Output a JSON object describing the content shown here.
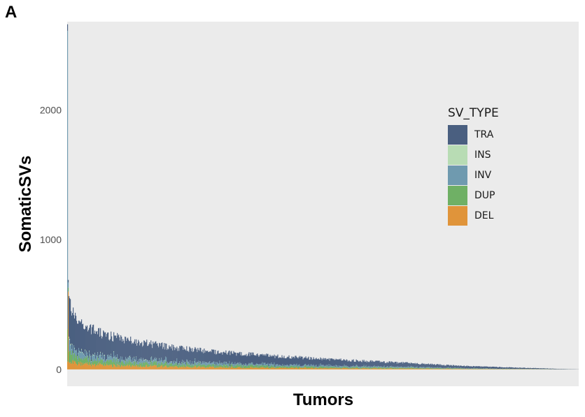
{
  "panel_label": "A",
  "chart_data": {
    "type": "bar",
    "stacked": true,
    "xlabel": "Tumors",
    "ylabel": "SomaticSVs",
    "ylim": [
      -130,
      2680
    ],
    "yticks": [
      0,
      1000,
      2000
    ],
    "grid": false,
    "legend_position": "right",
    "legend_title": "SV_TYPE",
    "legend": [
      {
        "name": "TRA",
        "color": "#4a5f80"
      },
      {
        "name": "INS",
        "color": "#b8dcb4"
      },
      {
        "name": "INV",
        "color": "#6f9aaf"
      },
      {
        "name": "DUP",
        "color": "#6fb065"
      },
      {
        "name": "DEL",
        "color": "#e0943a"
      }
    ],
    "n_tumors": 730,
    "highlighted_bars": [
      {
        "index": 0,
        "TRA": 50,
        "INS": 0,
        "INV": 2300,
        "DUP": 250,
        "DEL": 60
      },
      {
        "index": 1,
        "TRA": 20,
        "INS": 0,
        "INV": 40,
        "DUP": 30,
        "DEL": 600
      }
    ],
    "totals_profile": {
      "description_points_index": [
        2,
        10,
        25,
        50,
        100,
        150,
        200,
        300,
        400,
        500,
        550,
        600,
        650,
        680,
        700,
        729
      ],
      "description_points_total": [
        540,
        400,
        330,
        270,
        210,
        170,
        140,
        100,
        70,
        45,
        30,
        20,
        12,
        8,
        4,
        1
      ]
    },
    "component_shares": {
      "TRA": 0.62,
      "INS": 0.02,
      "INV": 0.12,
      "DUP": 0.12,
      "DEL": 0.12
    }
  }
}
